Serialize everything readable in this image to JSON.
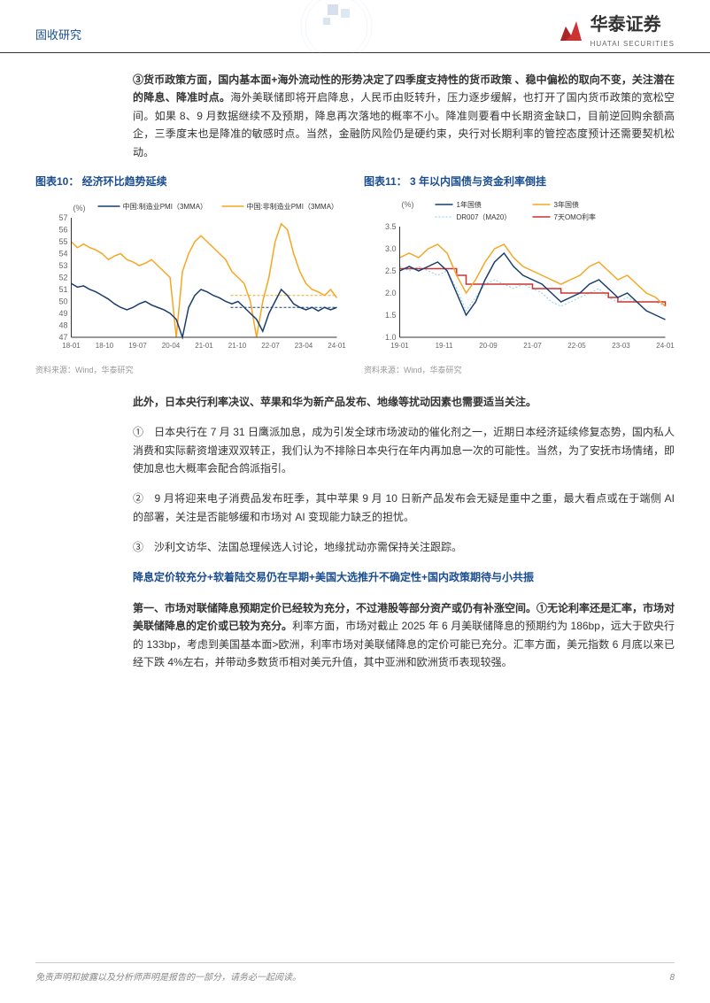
{
  "header": {
    "category": "固收研究",
    "company": "华泰证券",
    "company_en": "HUATAI SECURITIES"
  },
  "para1": {
    "bold": "③货币政策方面，国内基本面+海外流动性的形势决定了四季度支持性的货币政策 、稳中偏松的取向不变，关注潜在的降息、降准时点。",
    "rest": "海外美联储即将开启降息，人民币由贬转升，压力逐步缓解，也打开了国内货币政策的宽松空间。如果 8、9 月数据继续不及预期，降息再次落地的概率不小。降准则要看中长期资金缺口，目前逆回购余额高企，三季度末也是降准的敏感时点。当然，金融防风险仍是硬约束，央行对长期利率的管控态度预计还需要契机松动。"
  },
  "chart10": {
    "title": "图表10： 经济环比趋势延续",
    "source": "资料来源：Wind，华泰研究",
    "ylabel": "(%)",
    "legend": [
      "中国:制造业PMI（3MMA）",
      "中国:非制造业PMI（3MMA）"
    ],
    "colors": [
      "#1a3d6e",
      "#f5a623"
    ],
    "ylim": [
      47,
      57
    ],
    "yticks": [
      47,
      48,
      49,
      50,
      51,
      52,
      53,
      54,
      55,
      56,
      57
    ],
    "xticks": [
      "18-01",
      "18-10",
      "19-07",
      "20-04",
      "21-01",
      "21-10",
      "22-07",
      "23-04",
      "24-01"
    ],
    "ref_lines": [
      {
        "y": 49.5,
        "color": "#1a3d6e"
      },
      {
        "y": 50.5,
        "color": "#f5a623"
      }
    ],
    "series1": [
      51.5,
      51.2,
      51.3,
      51.0,
      50.8,
      50.5,
      50.2,
      49.8,
      49.5,
      49.3,
      49.5,
      49.8,
      50.0,
      49.7,
      49.5,
      49.3,
      49.0,
      48.5,
      47.0,
      49.5,
      50.5,
      51.0,
      50.8,
      50.5,
      50.3,
      50.0,
      49.8,
      50.0,
      49.5,
      49.0,
      48.5,
      47.5,
      49.0,
      50.0,
      51.0,
      50.5,
      49.8,
      49.5,
      49.3,
      49.5,
      49.2,
      49.5,
      49.3,
      49.5
    ],
    "series2": [
      55.0,
      54.5,
      54.8,
      54.5,
      54.3,
      54.0,
      53.5,
      53.8,
      54.0,
      53.5,
      53.3,
      53.0,
      53.2,
      53.5,
      53.0,
      52.5,
      52.0,
      47.0,
      52.5,
      54.0,
      55.0,
      55.5,
      55.0,
      54.5,
      54.0,
      53.5,
      52.5,
      52.0,
      51.5,
      50.0,
      47.0,
      50.0,
      52.0,
      55.0,
      56.5,
      56.0,
      54.0,
      52.5,
      51.5,
      51.0,
      50.8,
      50.5,
      51.0,
      50.3
    ]
  },
  "chart11": {
    "title": "图表11： 3 年以内国债与资金利率倒挂",
    "source": "资料来源：Wind，华泰研究",
    "ylabel": "(%)",
    "legend": [
      "1年国债",
      "3年国债",
      "DR007（MA20）",
      "7天OMO利率"
    ],
    "colors": [
      "#1a3d6e",
      "#f5a623",
      "#87ceeb",
      "#cc3333"
    ],
    "ylim": [
      1.0,
      3.5
    ],
    "yticks": [
      1.0,
      1.5,
      2.0,
      2.5,
      3.0,
      3.5
    ],
    "xticks": [
      "19-01",
      "19-11",
      "20-09",
      "21-07",
      "22-05",
      "23-03",
      "24-01"
    ],
    "series_1y": [
      2.5,
      2.6,
      2.5,
      2.6,
      2.7,
      2.5,
      2.0,
      1.5,
      1.8,
      2.3,
      2.7,
      2.9,
      2.6,
      2.4,
      2.3,
      2.2,
      2.0,
      1.8,
      1.9,
      2.0,
      2.2,
      2.3,
      2.1,
      1.9,
      2.0,
      1.8,
      1.6,
      1.5,
      1.4
    ],
    "series_3y": [
      2.8,
      2.9,
      2.8,
      3.0,
      3.1,
      2.9,
      2.4,
      2.0,
      2.3,
      2.7,
      3.0,
      3.1,
      2.8,
      2.6,
      2.5,
      2.4,
      2.3,
      2.2,
      2.3,
      2.4,
      2.6,
      2.7,
      2.5,
      2.3,
      2.4,
      2.2,
      2.0,
      1.9,
      1.7
    ],
    "series_dr007": [
      2.6,
      2.5,
      2.6,
      2.5,
      2.4,
      2.5,
      2.1,
      1.6,
      1.9,
      2.2,
      2.3,
      2.2,
      2.1,
      2.2,
      2.1,
      2.0,
      1.8,
      1.7,
      1.8,
      1.9,
      2.0,
      2.1,
      1.9,
      1.8,
      1.9,
      1.8,
      1.8,
      1.8,
      1.7
    ],
    "series_omo": [
      2.55,
      2.55,
      2.55,
      2.55,
      2.55,
      2.55,
      2.4,
      2.2,
      2.2,
      2.2,
      2.2,
      2.2,
      2.2,
      2.2,
      2.1,
      2.1,
      2.1,
      2.0,
      2.0,
      2.0,
      2.0,
      2.0,
      1.9,
      1.8,
      1.8,
      1.8,
      1.8,
      1.8,
      1.7
    ]
  },
  "para2": {
    "bold": "此外，日本央行利率决议、苹果和华为新产品发布、地缘等扰动因素也需要适当关注。",
    "num1": "①　日本央行在 7 月 31 日鹰派加息，成为引发全球市场波动的催化剂之一，近期日本经济延续修复态势，国内私人消费和实际薪资增速双双转正，我们认为不排除日本央行在年内再加息一次的可能性。当然，为了安抚市场情绪，即使加息也大概率会配合鸽派指引。",
    "num2": "②　9 月将迎来电子消费品发布旺季，其中苹果 9 月 10 日新产品发布会无疑是重中之重，最大看点或在于端侧 AI 的部署，关注是否能够缓和市场对 AI 变现能力缺乏的担忧。",
    "num3": "③　沙利文访华、法国总理候选人讨论，地缘扰动亦需保持关注跟踪。"
  },
  "section_title": "降息定价较充分+软着陆交易仍在早期+美国大选推升不确定性+国内政策期待与小共振",
  "para3": {
    "bold": "第一、市场对联储降息预期定价已经较为充分，不过港股等部分资产或仍有补涨空间。①无论利率还是汇率，市场对美联储降息的定价或已较为充分。",
    "rest": "利率方面，市场对截止 2025 年 6 月美联储降息的预期约为 186bp，远大于欧央行的 133bp，考虑到美国基本面>欧洲，利率市场对美联储降息的定价可能已充分。汇率方面，美元指数 6 月底以来已经下跌 4%左右，并带动多数货币相对美元升值，其中亚洲和欧洲货币表现较强。"
  },
  "footer": {
    "disclaimer": "免责声明和披露以及分析师声明是报告的一部分，请务必一起阅读。",
    "page": "8"
  }
}
